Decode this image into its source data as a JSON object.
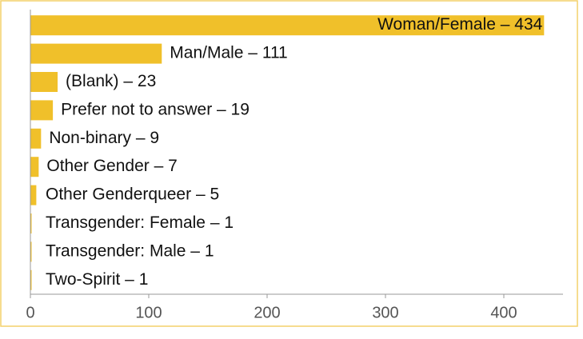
{
  "chart_data": {
    "type": "barh",
    "values": [
      434,
      111,
      23,
      19,
      9,
      7,
      5,
      1,
      1,
      1
    ],
    "value_labels": [
      "Woman/Female – 434",
      "Man/Male – 111",
      "(Blank) – 23",
      "Prefer not to answer – 19",
      "Non-binary – 9",
      "Other Gender – 7",
      "Other Genderqueer – 5",
      "Transgender: Female – 1",
      "Transgender: Male – 1",
      "Two-Spirit – 1"
    ],
    "color": "#f0c02a",
    "xlim": [
      0,
      450
    ],
    "xticks": [
      0,
      100,
      200,
      300,
      400
    ],
    "grid": false
  }
}
